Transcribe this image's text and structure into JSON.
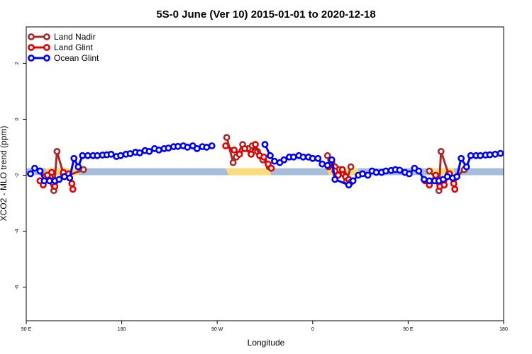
{
  "chart_data": {
    "type": "line",
    "title": "5S-0 June (Ver 10)   2015-01-01 to 2020-12-18",
    "xlabel": "Longitude",
    "ylabel": "XCO2 - MLO trend (ppm)",
    "xlim": [
      90,
      540
    ],
    "ylim": [
      -7.2,
      3.3
    ],
    "x_ticks": [
      {
        "value": 90,
        "label": "90 E"
      },
      {
        "value": 180,
        "label": "180"
      },
      {
        "value": 270,
        "label": "90 W"
      },
      {
        "value": 360,
        "label": "0"
      },
      {
        "value": 450,
        "label": "90 E"
      },
      {
        "value": 540,
        "label": "180"
      }
    ],
    "y_ticks": [
      {
        "value": 2,
        "label": "2"
      },
      {
        "value": 0,
        "label": "0"
      },
      {
        "value": -2,
        "label": "-2"
      },
      {
        "value": -4,
        "label": "-4"
      },
      {
        "value": -6,
        "label": "-6"
      }
    ],
    "band": {
      "ymin": -2.0,
      "ymax": -1.75,
      "color": "#a7bddc"
    },
    "land_band_segments": [
      {
        "xmin": 108,
        "xmax": 140
      },
      {
        "xmin": 278,
        "xmax": 321
      },
      {
        "xmin": 373,
        "xmax": 405
      },
      {
        "xmin": 468,
        "xmax": 495
      }
    ],
    "land_band_color": "#fcdc7a",
    "legend": {
      "position": "top-left",
      "entries": [
        {
          "label": "Land Nadir",
          "color": "#a52a2a"
        },
        {
          "label": "Land Glint",
          "color": "#e00000"
        },
        {
          "label": "Ocean Glint",
          "color": "#0000ee"
        }
      ]
    },
    "series": [
      {
        "name": "Land Nadir",
        "color": "#a52a2a",
        "points": [
          [
            103,
            -1.85
          ],
          [
            111,
            -2.15
          ],
          [
            116,
            -2.55
          ],
          [
            119,
            -1.15
          ],
          [
            125,
            -1.95
          ],
          [
            130,
            -2.0
          ],
          [
            144,
            -1.8
          ],
          [
            279,
            -0.65
          ],
          [
            285,
            -1.55
          ],
          [
            288,
            -1.35
          ],
          [
            294,
            -0.9
          ],
          [
            299,
            -1.05
          ],
          [
            303,
            -0.95
          ],
          [
            308,
            -1.15
          ],
          [
            313,
            -1.45
          ],
          [
            319,
            -1.7
          ],
          [
            374,
            -1.3
          ],
          [
            377,
            -1.45
          ],
          [
            381,
            -1.7
          ],
          [
            385,
            -1.8
          ],
          [
            389,
            -1.95
          ],
          [
            392,
            -2.2
          ],
          [
            396,
            -1.7
          ],
          [
            470,
            -1.85
          ],
          [
            476,
            -2.1
          ],
          [
            479,
            -2.55
          ],
          [
            481,
            -1.15
          ],
          [
            488,
            -1.95
          ],
          [
            493,
            -2.15
          ],
          [
            503,
            -1.8
          ]
        ]
      },
      {
        "name": "Land Glint",
        "color": "#e00000",
        "points": [
          [
            103,
            -2.2
          ],
          [
            106,
            -2.35
          ],
          [
            110,
            -2.0
          ],
          [
            114,
            -1.9
          ],
          [
            117,
            -2.4
          ],
          [
            125,
            -1.9
          ],
          [
            130,
            -1.95
          ],
          [
            133,
            -2.3
          ],
          [
            134,
            -2.5
          ],
          [
            278,
            -0.95
          ],
          [
            286,
            -1.1
          ],
          [
            291,
            -1.25
          ],
          [
            296,
            -1.05
          ],
          [
            302,
            -1.25
          ],
          [
            306,
            -0.9
          ],
          [
            310,
            -1.3
          ],
          [
            314,
            -1.35
          ],
          [
            318,
            -1.6
          ],
          [
            321,
            -1.75
          ],
          [
            375,
            -1.7
          ],
          [
            378,
            -1.55
          ],
          [
            381,
            -1.85
          ],
          [
            384,
            -2.0
          ],
          [
            388,
            -1.8
          ],
          [
            391,
            -2.05
          ],
          [
            394,
            -2.15
          ],
          [
            396,
            -2.25
          ],
          [
            466,
            -2.2
          ],
          [
            470,
            -2.35
          ],
          [
            476,
            -2.0
          ],
          [
            480,
            -2.4
          ],
          [
            484,
            -2.35
          ],
          [
            489,
            -1.95
          ],
          [
            493,
            -2.3
          ],
          [
            494,
            -2.5
          ]
        ]
      },
      {
        "name": "Ocean Glint",
        "color": "#0000ee",
        "points": [
          [
            94,
            -1.95
          ],
          [
            98,
            -1.75
          ],
          [
            103,
            -1.85
          ],
          [
            107,
            -2.2
          ],
          [
            112,
            -2.2
          ],
          [
            117,
            -2.2
          ],
          [
            121,
            -2.15
          ],
          [
            126,
            -2.05
          ],
          [
            131,
            -2.1
          ],
          [
            135,
            -1.4
          ],
          [
            139,
            -1.7
          ],
          [
            143,
            -1.3
          ],
          [
            148,
            -1.3
          ],
          [
            153,
            -1.3
          ],
          [
            157,
            -1.3
          ],
          [
            162,
            -1.28
          ],
          [
            166,
            -1.27
          ],
          [
            170,
            -1.25
          ],
          [
            175,
            -1.33
          ],
          [
            179,
            -1.3
          ],
          [
            184,
            -1.25
          ],
          [
            188,
            -1.23
          ],
          [
            193,
            -1.18
          ],
          [
            197,
            -1.2
          ],
          [
            202,
            -1.12
          ],
          [
            206,
            -1.15
          ],
          [
            211,
            -1.05
          ],
          [
            215,
            -1.1
          ],
          [
            220,
            -1.05
          ],
          [
            224,
            -1.03
          ],
          [
            229,
            -0.98
          ],
          [
            233,
            -0.97
          ],
          [
            238,
            -0.95
          ],
          [
            242,
            -1.0
          ],
          [
            247,
            -0.95
          ],
          [
            251,
            -1.05
          ],
          [
            256,
            -0.98
          ],
          [
            260,
            -1.0
          ],
          [
            265,
            -0.95
          ],
          [
            315,
            -0.9
          ],
          [
            320,
            -1.3
          ],
          [
            324,
            -1.5
          ],
          [
            329,
            -1.55
          ],
          [
            333,
            -1.45
          ],
          [
            338,
            -1.35
          ],
          [
            342,
            -1.35
          ],
          [
            347,
            -1.3
          ],
          [
            351,
            -1.35
          ],
          [
            356,
            -1.35
          ],
          [
            360,
            -1.4
          ],
          [
            365,
            -1.4
          ],
          [
            369,
            -1.6
          ],
          [
            374,
            -1.65
          ],
          [
            378,
            -1.45
          ],
          [
            381,
            -2.15
          ],
          [
            394,
            -2.35
          ],
          [
            398,
            -2.2
          ],
          [
            403,
            -2.0
          ],
          [
            407,
            -1.95
          ],
          [
            412,
            -2.0
          ],
          [
            416,
            -1.85
          ],
          [
            420,
            -1.9
          ],
          [
            425,
            -1.9
          ],
          [
            429,
            -1.85
          ],
          [
            434,
            -1.83
          ],
          [
            438,
            -1.8
          ],
          [
            442,
            -1.82
          ],
          [
            447,
            -1.9
          ],
          [
            451,
            -1.95
          ],
          [
            456,
            -1.75
          ],
          [
            460,
            -1.85
          ],
          [
            465,
            -2.15
          ],
          [
            470,
            -2.2
          ],
          [
            475,
            -2.2
          ],
          [
            479,
            -2.2
          ],
          [
            483,
            -2.15
          ],
          [
            487,
            -2.05
          ],
          [
            492,
            -2.1
          ],
          [
            496,
            -2.05
          ],
          [
            500,
            -1.4
          ],
          [
            505,
            -1.7
          ],
          [
            509,
            -1.3
          ],
          [
            514,
            -1.3
          ],
          [
            518,
            -1.3
          ],
          [
            523,
            -1.28
          ],
          [
            527,
            -1.27
          ],
          [
            532,
            -1.25
          ],
          [
            537,
            -1.22
          ]
        ]
      }
    ]
  }
}
